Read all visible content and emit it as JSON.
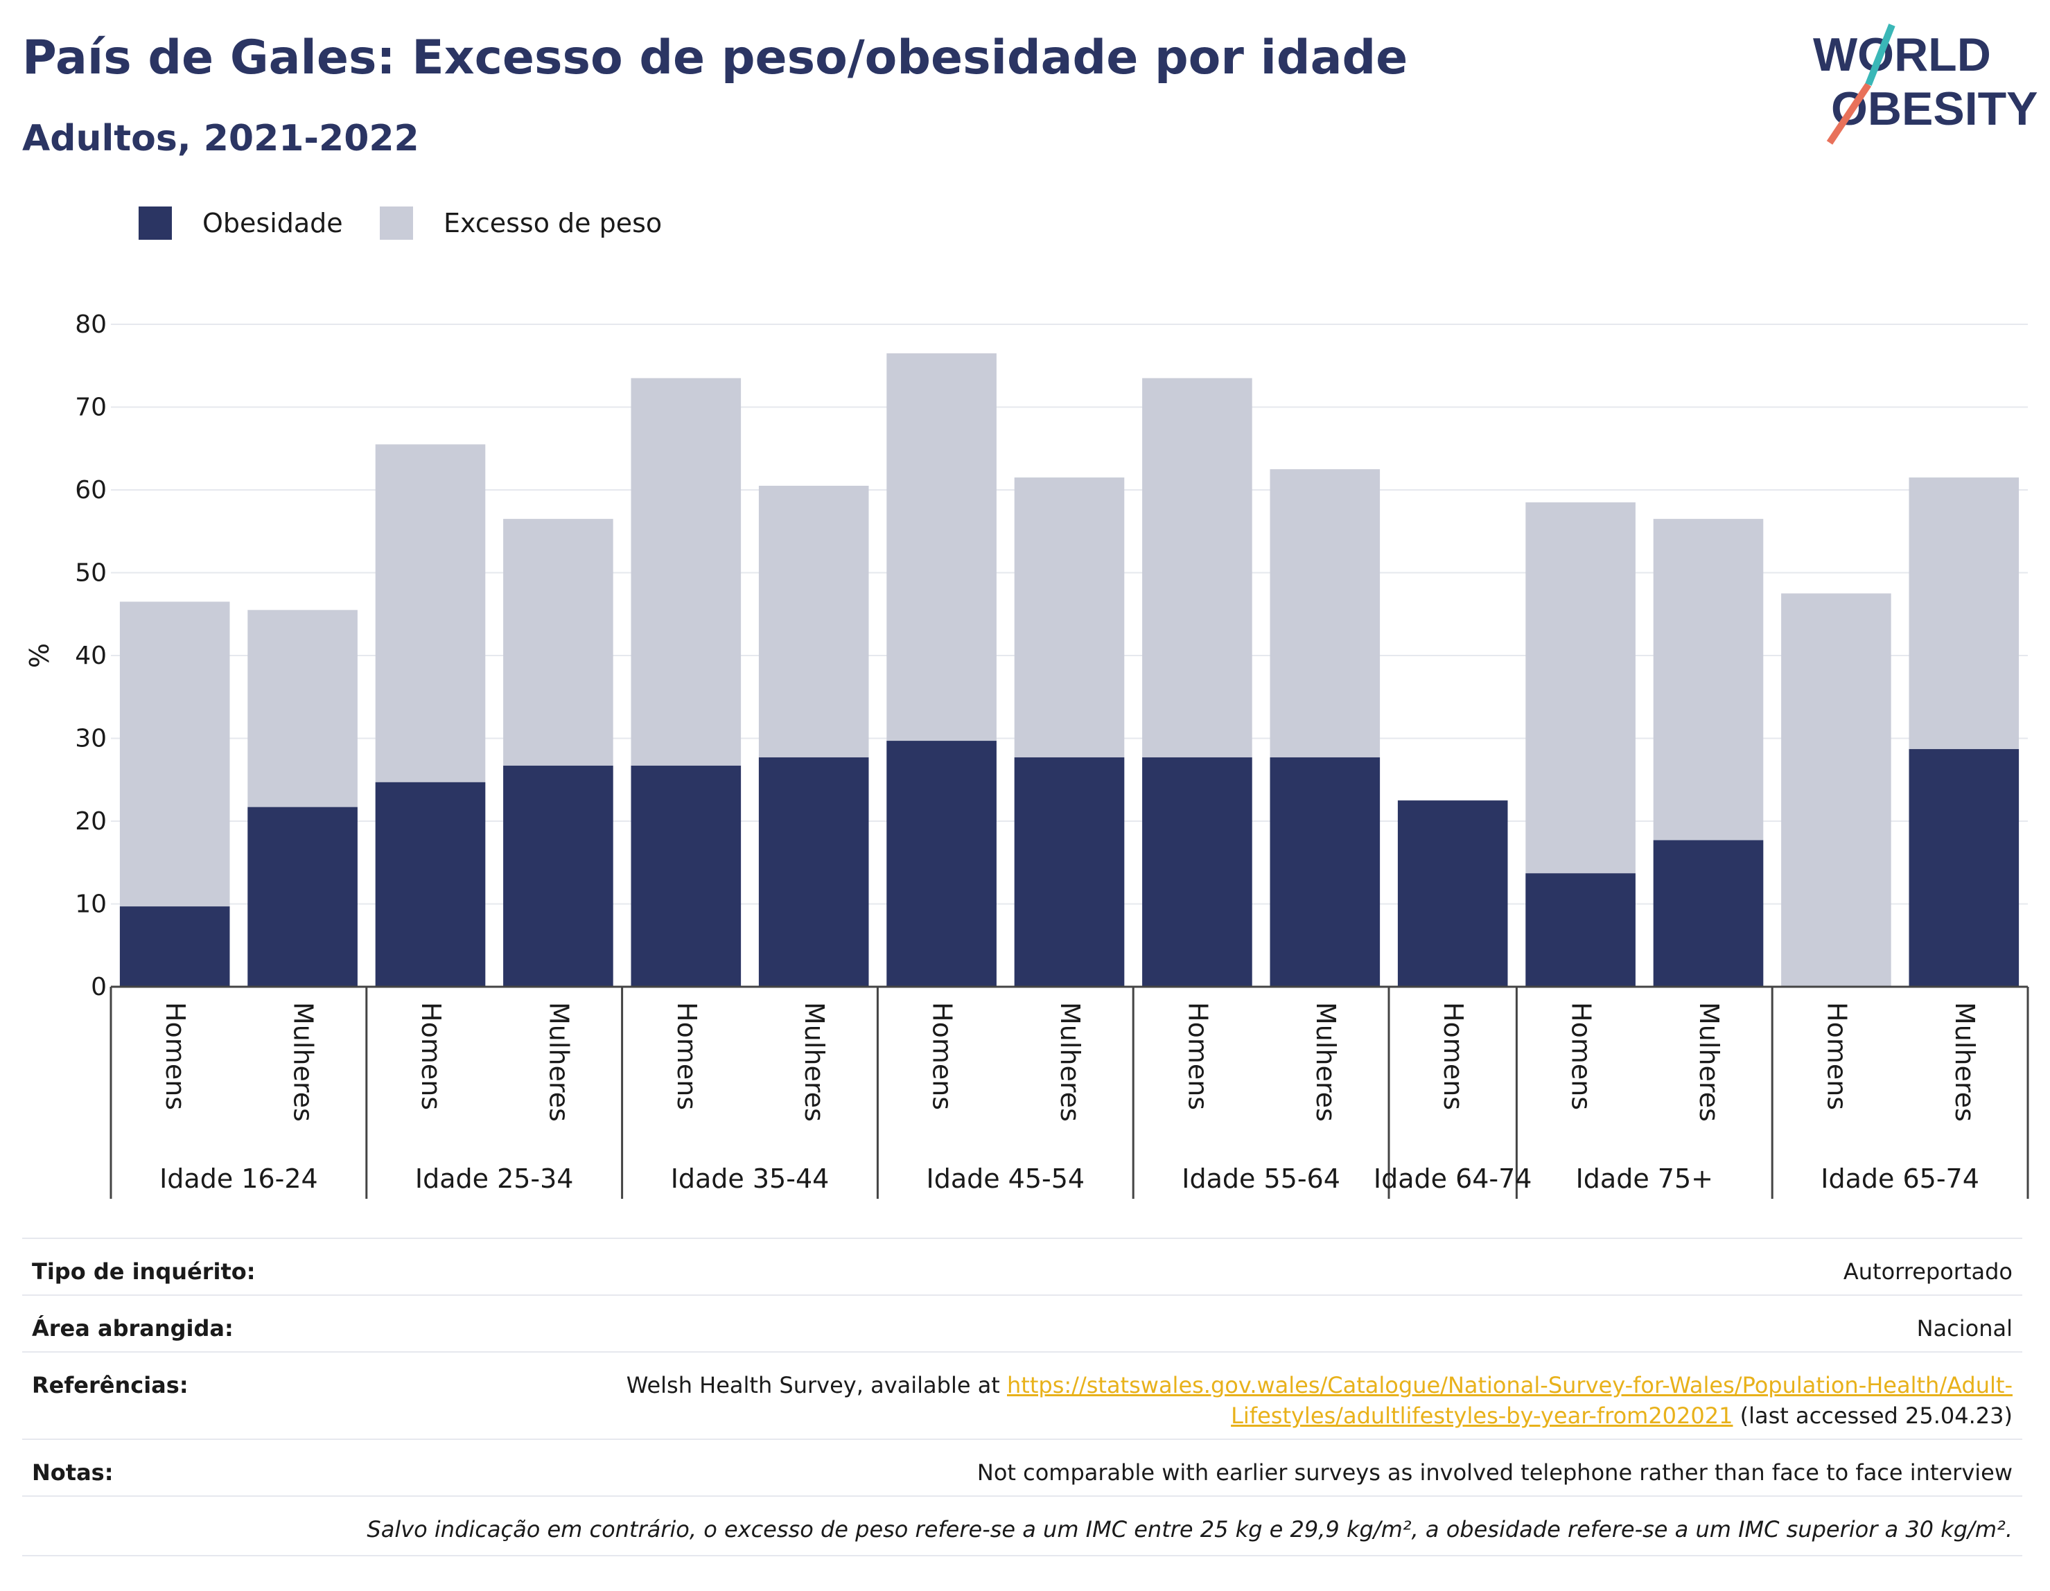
{
  "header": {
    "title": "País de Gales: Excesso de peso/obesidade por idade",
    "subtitle": "Adultos, 2021-2022"
  },
  "logo": {
    "line1": "WORLD",
    "line2": "OBESITY",
    "colors": [
      "#2b3563",
      "#e8715a",
      "#3ab7b7"
    ]
  },
  "legend": [
    {
      "label": "Obesidade",
      "color": "#2b3563"
    },
    {
      "label": "Excesso de peso",
      "color": "#c9ccd8"
    }
  ],
  "chart_data": {
    "type": "bar",
    "stacked": false,
    "overlay": true,
    "ylabel": "%",
    "ylim": [
      0,
      80
    ],
    "yticks": [
      0,
      10,
      20,
      30,
      40,
      50,
      60,
      70,
      80
    ],
    "grid": true,
    "legend_position": "top-left",
    "groups": [
      "Idade 16-24",
      "Idade 25-34",
      "Idade 35-44",
      "Idade 45-54",
      "Idade 55-64",
      "Idade 64-74",
      "Idade 75+",
      "Idade 65-74"
    ],
    "categories": [
      {
        "group": 0,
        "label": "Homens"
      },
      {
        "group": 0,
        "label": "Mulheres"
      },
      {
        "group": 1,
        "label": "Homens"
      },
      {
        "group": 1,
        "label": "Mulheres"
      },
      {
        "group": 2,
        "label": "Homens"
      },
      {
        "group": 2,
        "label": "Mulheres"
      },
      {
        "group": 3,
        "label": "Homens"
      },
      {
        "group": 3,
        "label": "Mulheres"
      },
      {
        "group": 4,
        "label": "Homens"
      },
      {
        "group": 4,
        "label": "Mulheres"
      },
      {
        "group": 5,
        "label": "Homens"
      },
      {
        "group": 6,
        "label": "Homens"
      },
      {
        "group": 6,
        "label": "Mulheres"
      },
      {
        "group": 7,
        "label": "Homens"
      },
      {
        "group": 7,
        "label": "Mulheres"
      }
    ],
    "series": [
      {
        "name": "Excesso de peso",
        "color": "#c9ccd8",
        "values": [
          46.5,
          45.5,
          65.5,
          56.5,
          73.5,
          60.5,
          76.5,
          61.5,
          73.5,
          62.5,
          null,
          58.5,
          56.5,
          47.5,
          61.5
        ]
      },
      {
        "name": "Obesidade",
        "color": "#2b3563",
        "values": [
          9.7,
          21.7,
          24.7,
          26.7,
          26.7,
          27.7,
          29.7,
          27.7,
          27.7,
          27.7,
          22.5,
          13.7,
          17.7,
          null,
          28.7
        ]
      }
    ]
  },
  "meta": {
    "survey_type_label": "Tipo de inquérito:",
    "survey_type_value": "Autorreportado",
    "area_label": "Área abrangida:",
    "area_value": "Nacional",
    "references_label": "Referências:",
    "references_prefix": "Welsh Health Survey, available at ",
    "references_link_1": "https://statswales.gov.wales/Catalogue/National-Survey-for-Wales/Population-Health/Adult-",
    "references_link_2": "Lifestyles/adultlifestyles-by-year-from202021",
    "references_suffix": " (last accessed 25.04.23)",
    "notes_label": "Notas:",
    "notes_value": "Not comparable with earlier surveys as involved telephone rather than face to face interview",
    "footnote": "Salvo indicação em contrário, o excesso de peso refere-se a um IMC entre 25 kg e 29,9 kg/m², a obesidade refere-se a um IMC superior a 30 kg/m²."
  }
}
